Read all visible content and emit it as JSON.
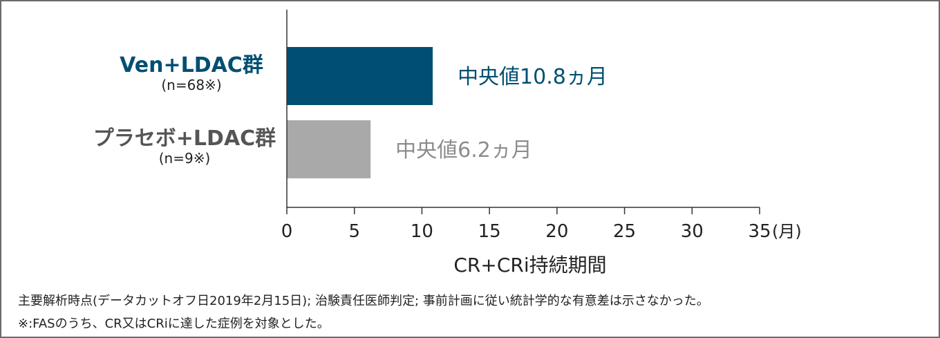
{
  "chart_data": {
    "type": "bar",
    "orientation": "horizontal",
    "categories": [
      "Ven+LDAC群",
      "プラセボ+LDAC群"
    ],
    "category_notes": [
      "(n=68※)",
      "(n=9※)"
    ],
    "values": [
      10.8,
      6.2
    ],
    "value_labels": [
      "中央値10.8ヵ月",
      "中央値6.2ヵ月"
    ],
    "colors": [
      "#004f72",
      "#a9a9a9"
    ],
    "label_colors": [
      "#004f72",
      "#8c8c8c"
    ],
    "xlabel": "CR+CRi持続期間",
    "x_unit": "(月)",
    "xlim": [
      0,
      35
    ],
    "xticks": [
      0,
      5,
      10,
      15,
      20,
      25,
      30,
      35
    ],
    "grid": false
  },
  "footnotes": [
    "主要解析時点(データカットオフ日2019年2月15日); 治験責任医師判定; 事前計画に従い統計学的な有意差は示さなかった。",
    "※:FASのうち、CR又はCRiに達した症例を対象とした。"
  ]
}
